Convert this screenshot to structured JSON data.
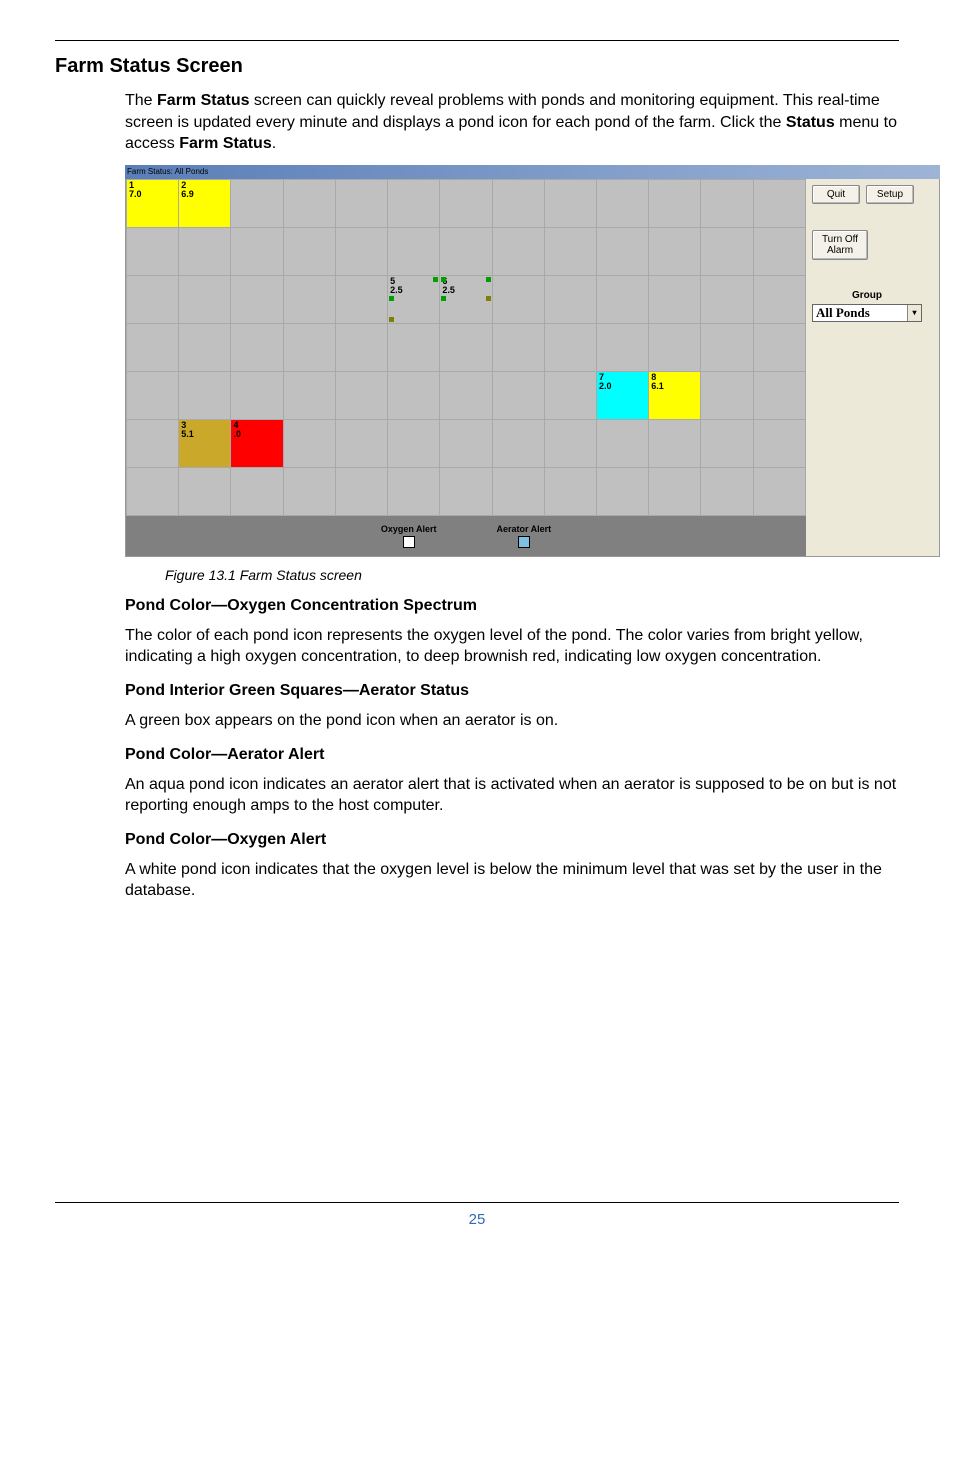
{
  "section_title": "Farm Status Screen",
  "intro_parts": {
    "p1": "The ",
    "b1": "Farm Status",
    "p2": " screen can quickly reveal problems with ponds and monitoring equipment. This real-time screen is updated every minute and displays a pond icon for each pond of the farm. Click the ",
    "b2": "Status",
    "p3": " menu to access ",
    "b3": "Farm Status",
    "p4": "."
  },
  "screenshot": {
    "titlebar": "Farm Status: All Ponds",
    "grid": {
      "rows": 7,
      "cols": 13,
      "bg_empty": "#c0c0c0",
      "ponds": [
        {
          "row": 0,
          "col": 0,
          "id": "1",
          "val": "7.0",
          "bg": "#ffff00",
          "aerators": []
        },
        {
          "row": 0,
          "col": 1,
          "id": "2",
          "val": "6.9",
          "bg": "#ffff00",
          "aerators": []
        },
        {
          "row": 2,
          "col": 5,
          "id": "5",
          "val": "2.5",
          "bg": "#c0c0c0",
          "aerators": [
            {
              "pos": "tr",
              "color": "#00a000"
            },
            {
              "pos": "ml",
              "color": "#00a000"
            },
            {
              "pos": "bl",
              "color": "#808000"
            }
          ]
        },
        {
          "row": 2,
          "col": 6,
          "id": "6",
          "val": "2.5",
          "bg": "#c0c0c0",
          "aerators": [
            {
              "pos": "tl",
              "color": "#00a000"
            },
            {
              "pos": "ml",
              "color": "#00a000"
            },
            {
              "pos": "mr",
              "color": "#808000"
            },
            {
              "pos": "tr",
              "color": "#00a000"
            }
          ]
        },
        {
          "row": 4,
          "col": 9,
          "id": "7",
          "val": "2.0",
          "bg": "#00ffff",
          "aerators": []
        },
        {
          "row": 4,
          "col": 10,
          "id": "8",
          "val": "6.1",
          "bg": "#ffff00",
          "aerators": []
        },
        {
          "row": 5,
          "col": 1,
          "id": "3",
          "val": "5.1",
          "bg": "#caa82a",
          "aerators": []
        },
        {
          "row": 5,
          "col": 2,
          "id": "4",
          "val": ".0",
          "bg": "#ff0000",
          "aerators": []
        }
      ]
    },
    "legend": {
      "oxy_label": "Oxygen Alert",
      "oxy_color": "#ffffff",
      "aer_label": "Aerator Alert",
      "aer_color": "#7fbfe0"
    },
    "controls": {
      "quit": "Quit",
      "setup": "Setup",
      "alarm": "Turn Off Alarm",
      "group_label": "Group",
      "dropdown_value": "All Ponds"
    }
  },
  "fig_caption": "Figure 13.1 Farm Status screen",
  "sub1_title": "Pond Color—Oxygen Concentration Spectrum",
  "sub1_body": "The color of each pond icon represents the oxygen level of the pond. The color varies from bright yellow, indicating a high oxygen concentration, to deep brownish red, indicating low oxygen concentration.",
  "sub2_title": "Pond Interior Green Squares—Aerator Status",
  "sub2_body": "A green box appears on the pond icon when an aerator is on.",
  "sub3_title": "Pond Color—Aerator Alert",
  "sub3_body": "An aqua pond icon indicates an aerator alert that is activated when an aerator is supposed to be on but is not reporting enough amps to the host computer.",
  "sub4_title": "Pond Color—Oxygen Alert",
  "sub4_body": "A white pond icon indicates that the oxygen level is below the minimum level that was set by the user in the database.",
  "page_number": "25"
}
